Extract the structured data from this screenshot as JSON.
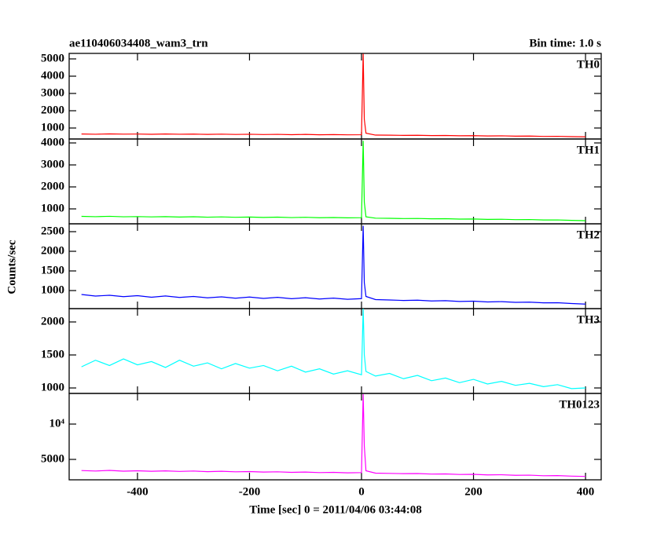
{
  "chart_data": [
    {
      "type": "line",
      "title": "ae110406034408_wam3_trn",
      "subtitle": "Bin time: 1.0 s",
      "xlim": [
        -522,
        428
      ],
      "xticks": [
        -400,
        -200,
        0,
        200,
        400
      ],
      "ylim": [
        364,
        5318
      ],
      "yticks": [
        1000,
        2000,
        3000,
        4000,
        5000
      ],
      "x": [
        -500,
        -475,
        -450,
        -425,
        -400,
        -375,
        -350,
        -325,
        -300,
        -275,
        -250,
        -225,
        -200,
        -175,
        -150,
        -125,
        -100,
        -75,
        -50,
        -25,
        0,
        3,
        5,
        8,
        25,
        50,
        75,
        100,
        125,
        150,
        175,
        200,
        225,
        250,
        275,
        300,
        325,
        350,
        375,
        400
      ],
      "series": [
        {
          "name": "TH0",
          "color": "#ff0000",
          "values": [
            655,
            640,
            660,
            645,
            650,
            638,
            655,
            640,
            648,
            630,
            645,
            628,
            640,
            622,
            635,
            615,
            630,
            610,
            620,
            605,
            612,
            5300,
            1500,
            700,
            590,
            585,
            575,
            580,
            562,
            570,
            550,
            558,
            540,
            548,
            528,
            535,
            515,
            520,
            500,
            490
          ]
        }
      ]
    },
    {
      "type": "line",
      "xlim": [
        -522,
        428
      ],
      "xticks": [
        -400,
        -200,
        0,
        200,
        400
      ],
      "ylim": [
        321,
        4179
      ],
      "yticks": [
        1000,
        2000,
        3000,
        4000
      ],
      "x": [
        -500,
        -475,
        -450,
        -425,
        -400,
        -375,
        -350,
        -325,
        -300,
        -275,
        -250,
        -225,
        -200,
        -175,
        -150,
        -125,
        -100,
        -75,
        -50,
        -25,
        0,
        3,
        5,
        8,
        25,
        50,
        75,
        100,
        125,
        150,
        175,
        200,
        225,
        250,
        275,
        300,
        325,
        350,
        375,
        400
      ],
      "series": [
        {
          "name": "TH1",
          "color": "#00ff00",
          "values": [
            660,
            645,
            662,
            640,
            650,
            635,
            648,
            630,
            642,
            622,
            636,
            618,
            630,
            612,
            625,
            605,
            618,
            598,
            608,
            592,
            600,
            4100,
            1300,
            640,
            578,
            570,
            560,
            565,
            548,
            552,
            535,
            540,
            522,
            528,
            510,
            515,
            495,
            498,
            478,
            465
          ]
        }
      ]
    },
    {
      "type": "line",
      "y_label": "Counts/sec",
      "xlim": [
        -522,
        428
      ],
      "xticks": [
        -400,
        -200,
        0,
        200,
        400
      ],
      "ylim": [
        540,
        2700
      ],
      "yticks": [
        1000,
        1500,
        2000,
        2500
      ],
      "x": [
        -500,
        -475,
        -450,
        -425,
        -400,
        -375,
        -350,
        -325,
        -300,
        -275,
        -250,
        -225,
        -200,
        -175,
        -150,
        -125,
        -100,
        -75,
        -50,
        -25,
        0,
        3,
        5,
        8,
        25,
        50,
        75,
        100,
        125,
        150,
        175,
        200,
        225,
        250,
        275,
        300,
        325,
        350,
        375,
        400
      ],
      "series": [
        {
          "name": "TH2",
          "color": "#0000ff",
          "values": [
            900,
            860,
            880,
            845,
            870,
            830,
            862,
            825,
            850,
            815,
            840,
            805,
            835,
            800,
            828,
            792,
            818,
            785,
            808,
            778,
            795,
            2650,
            1200,
            850,
            770,
            760,
            748,
            755,
            735,
            742,
            722,
            730,
            710,
            718,
            700,
            705,
            688,
            690,
            670,
            655
          ]
        }
      ]
    },
    {
      "type": "line",
      "xlim": [
        -522,
        428
      ],
      "xticks": [
        -400,
        -200,
        0,
        200,
        400
      ],
      "ylim": [
        917,
        2202
      ],
      "yticks": [
        1000,
        1500,
        2000
      ],
      "x": [
        -500,
        -475,
        -450,
        -425,
        -400,
        -375,
        -350,
        -325,
        -300,
        -275,
        -250,
        -225,
        -200,
        -175,
        -150,
        -125,
        -100,
        -75,
        -50,
        -25,
        0,
        3,
        5,
        8,
        25,
        50,
        75,
        100,
        125,
        150,
        175,
        200,
        225,
        250,
        275,
        300,
        325,
        350,
        375,
        400
      ],
      "series": [
        {
          "name": "TH3",
          "color": "#00ffff",
          "values": [
            1320,
            1420,
            1340,
            1440,
            1350,
            1400,
            1310,
            1420,
            1330,
            1380,
            1290,
            1370,
            1300,
            1340,
            1260,
            1330,
            1240,
            1290,
            1210,
            1260,
            1200,
            2200,
            1500,
            1250,
            1180,
            1220,
            1140,
            1190,
            1110,
            1150,
            1080,
            1130,
            1060,
            1100,
            1040,
            1070,
            1020,
            1050,
            990,
            1000
          ]
        }
      ]
    },
    {
      "type": "line",
      "x_label": "Time [sec] 0 = 2011/04/06 03:44:08",
      "log_y": true,
      "xlim": [
        -522,
        428
      ],
      "xticks": [
        -400,
        -200,
        0,
        200,
        400
      ],
      "ylim": [
        3350,
        18240
      ],
      "yticks": [
        5000,
        {
          "value": 10000,
          "label": "10⁴"
        }
      ],
      "x": [
        -500,
        -475,
        -450,
        -425,
        -400,
        -375,
        -350,
        -325,
        -300,
        -275,
        -250,
        -225,
        -200,
        -175,
        -150,
        -125,
        -100,
        -75,
        -50,
        -25,
        0,
        3,
        5,
        8,
        25,
        50,
        75,
        100,
        125,
        150,
        175,
        200,
        225,
        250,
        275,
        300,
        325,
        350,
        375,
        400
      ],
      "series": [
        {
          "name": "TH0123",
          "color": "#ff00ff",
          "values": [
            4020,
            3980,
            4030,
            3970,
            4000,
            3960,
            3990,
            3950,
            3980,
            3930,
            3960,
            3920,
            3940,
            3900,
            3920,
            3880,
            3900,
            3860,
            3880,
            3840,
            3860,
            18000,
            6500,
            4000,
            3820,
            3800,
            3780,
            3790,
            3750,
            3760,
            3720,
            3730,
            3690,
            3700,
            3660,
            3670,
            3630,
            3640,
            3600,
            3580
          ]
        }
      ]
    }
  ]
}
